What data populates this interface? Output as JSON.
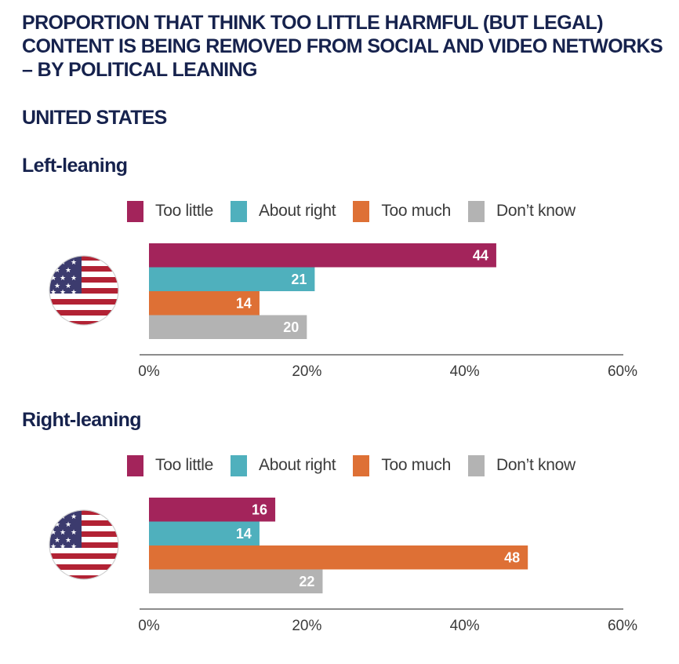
{
  "title": "PROPORTION THAT THINK TOO LITTLE HARMFUL (BUT LEGAL) CONTENT IS BEING REMOVED FROM SOCIAL AND VIDEO NETWORKS – BY POLITICAL LEANING",
  "country": "UNITED STATES",
  "flag_icon": "us-flag-icon",
  "colors": {
    "too_little": "#a3245b",
    "about_right": "#4fb0bd",
    "too_much": "#de7035",
    "dont_know": "#b3b3b3",
    "axis": "#666666",
    "title": "#16224d"
  },
  "chart_data": [
    {
      "type": "bar",
      "orientation": "horizontal",
      "title": "Left-leaning",
      "categories": [
        "Too little",
        "About right",
        "Too much",
        "Don’t know"
      ],
      "values": [
        44,
        21,
        14,
        20
      ],
      "xlim": [
        0,
        60
      ],
      "xticks": [
        "0%",
        "20%",
        "40%",
        "60%"
      ],
      "xlabel": "",
      "ylabel": "",
      "legend": [
        "Too little",
        "About right",
        "Too much",
        "Don’t know"
      ],
      "legend_position": "top",
      "grid": false
    },
    {
      "type": "bar",
      "orientation": "horizontal",
      "title": "Right-leaning",
      "categories": [
        "Too little",
        "About right",
        "Too much",
        "Don’t know"
      ],
      "values": [
        16,
        14,
        48,
        22
      ],
      "xlim": [
        0,
        60
      ],
      "xticks": [
        "0%",
        "20%",
        "40%",
        "60%"
      ],
      "xlabel": "",
      "ylabel": "",
      "legend": [
        "Too little",
        "About right",
        "Too much",
        "Don’t know"
      ],
      "legend_position": "top",
      "grid": false
    }
  ]
}
